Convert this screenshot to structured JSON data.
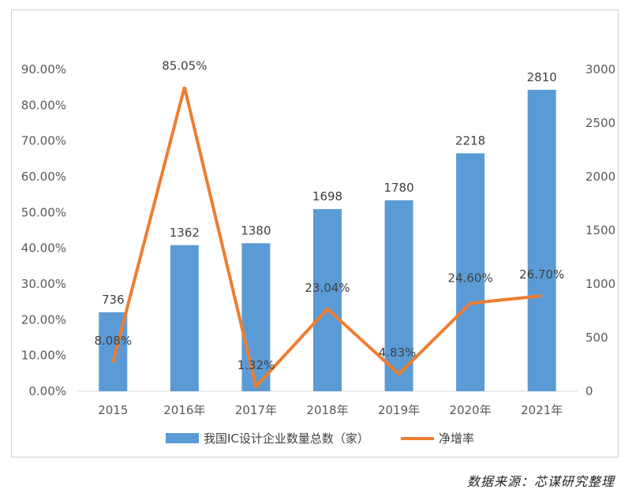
{
  "chart_data": {
    "type": "bar",
    "categories": [
      "2015",
      "2016年",
      "2017年",
      "2018年",
      "2019年",
      "2020年",
      "2021年"
    ],
    "series": [
      {
        "name": "我国IC设计企业数量总数（家）",
        "type": "bar",
        "axis": "right",
        "color": "#5b9bd5",
        "values": [
          736,
          1362,
          1380,
          1698,
          1780,
          2218,
          2810
        ],
        "labels": [
          "736",
          "1362",
          "1380",
          "1698",
          "1780",
          "2218",
          "2810"
        ]
      },
      {
        "name": "净增率",
        "type": "line",
        "axis": "left",
        "color": "#ed7d31",
        "values": [
          8.08,
          85.05,
          1.32,
          23.04,
          4.83,
          24.6,
          26.7
        ],
        "labels": [
          "8.08%",
          "85.05%",
          "1.32%",
          "23.04%",
          "4.83%",
          "24.60%",
          "26.70%"
        ]
      }
    ],
    "left_axis": {
      "range": [
        0,
        90
      ],
      "ticks": [
        "0.00%",
        "10.00%",
        "20.00%",
        "30.00%",
        "40.00%",
        "50.00%",
        "60.00%",
        "70.00%",
        "80.00%",
        "90.00%"
      ]
    },
    "right_axis": {
      "range": [
        0,
        3000
      ],
      "ticks": [
        "0",
        "500",
        "1000",
        "1500",
        "2000",
        "2500",
        "3000"
      ]
    },
    "grid": false,
    "legend_position": "bottom"
  },
  "source_note": "数据来源：芯谋研究整理"
}
